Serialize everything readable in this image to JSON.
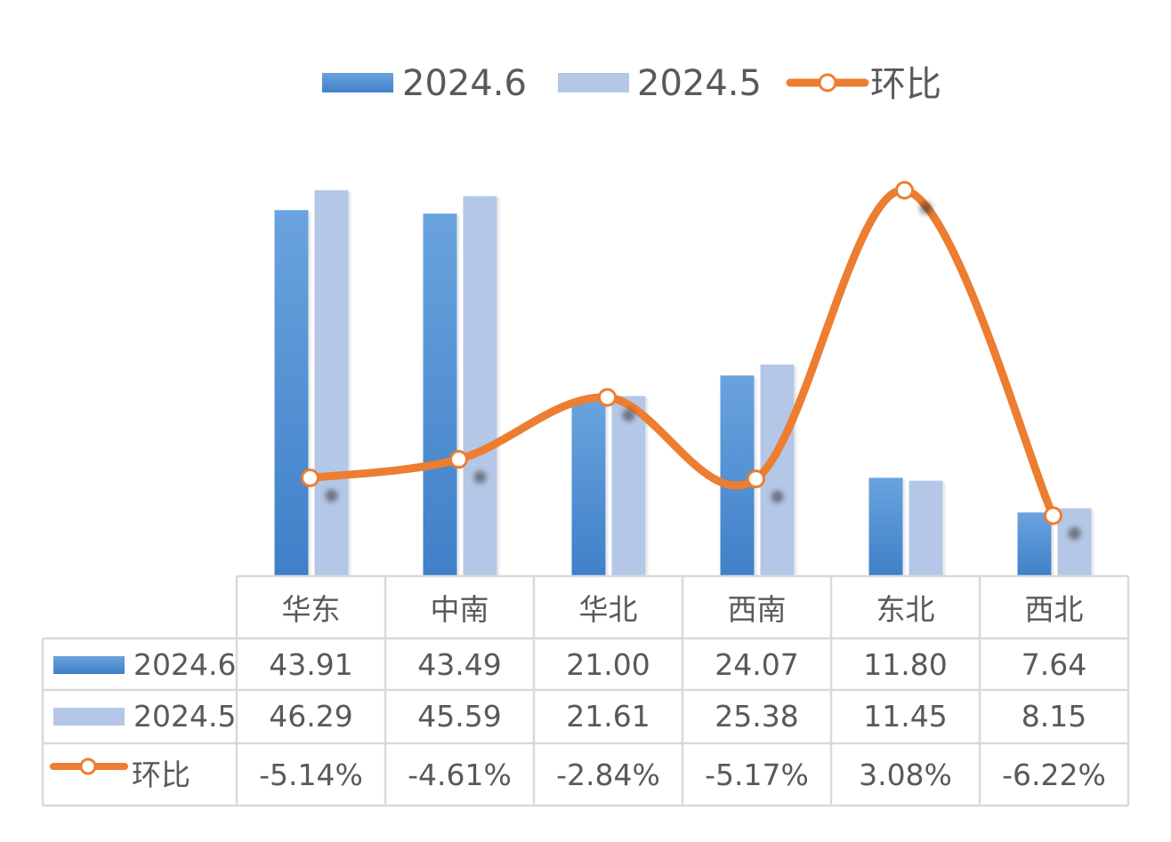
{
  "chart_data": {
    "type": "bar",
    "categories": [
      "华东",
      "中南",
      "华北",
      "西南",
      "东北",
      "西北"
    ],
    "series": [
      {
        "name": "2024.6",
        "kind": "bar",
        "color": "#4e8fd6",
        "values": [
          43.91,
          43.49,
          21.0,
          24.07,
          11.8,
          7.64
        ],
        "labels": [
          "43.91",
          "43.49",
          "21.00",
          "24.07",
          "11.80",
          "7.64"
        ]
      },
      {
        "name": "2024.5",
        "kind": "bar",
        "color": "#b4c7e7",
        "values": [
          46.29,
          45.59,
          21.61,
          25.38,
          11.45,
          8.15
        ],
        "labels": [
          "46.29",
          "45.59",
          "21.61",
          "25.38",
          "11.45",
          "8.15"
        ]
      },
      {
        "name": "环比",
        "kind": "line",
        "color": "#ed7d31",
        "values": [
          -5.14,
          -4.61,
          -2.84,
          -5.17,
          3.08,
          -6.22
        ],
        "labels": [
          "-5.14%",
          "-4.61%",
          "-2.84%",
          "-5.17%",
          "3.08%",
          "-6.22%"
        ]
      }
    ],
    "legend_position": "top",
    "data_table": true,
    "grid": false
  }
}
